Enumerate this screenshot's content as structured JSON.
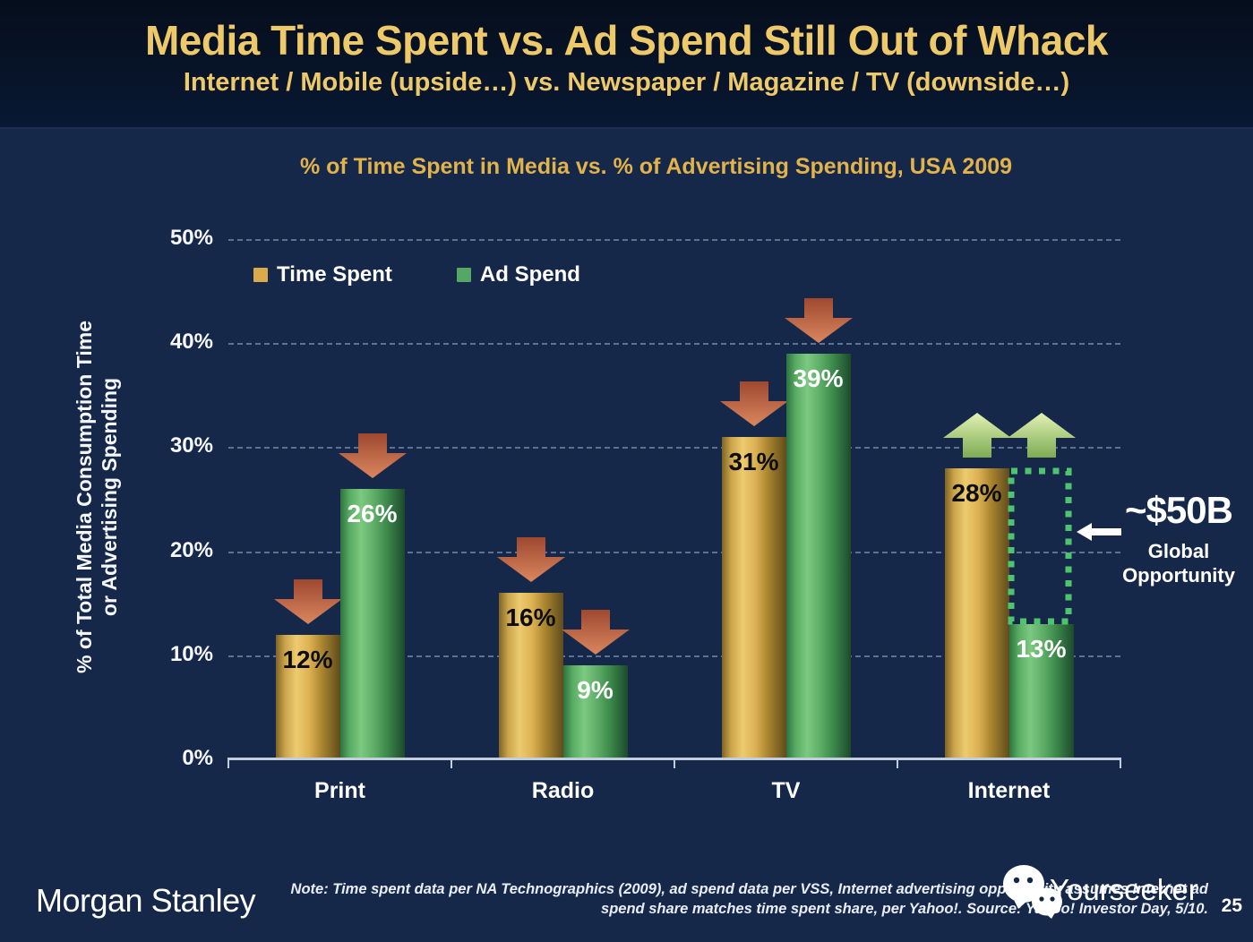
{
  "slide": {
    "title": "Media Time Spent vs. Ad Spend Still Out of Whack",
    "subtitle": "Internet / Mobile (upside…) vs. Newspaper / Magazine / TV (downside…)",
    "page_number": "25"
  },
  "chart_data": {
    "type": "bar",
    "title": "% of Time Spent in Media vs. % of Advertising Spending, USA 2009",
    "ylabel": [
      "% of Total Media Consumption Time",
      "or Advertising Spending"
    ],
    "categories": [
      "Print",
      "Radio",
      "TV",
      "Internet"
    ],
    "series": [
      {
        "name": "Time Spent",
        "color": "#d9ab4a",
        "values": [
          12,
          16,
          31,
          28
        ],
        "labels": [
          "12%",
          "16%",
          "31%",
          "28%"
        ]
      },
      {
        "name": "Ad Spend",
        "color": "#55a763",
        "values": [
          26,
          9,
          39,
          13
        ],
        "labels": [
          "26%",
          "9%",
          "39%",
          "13%"
        ]
      }
    ],
    "yticks": [
      {
        "value": 0,
        "label": "0%"
      },
      {
        "value": 10,
        "label": "10%"
      },
      {
        "value": 20,
        "label": "20%"
      },
      {
        "value": 30,
        "label": "30%"
      },
      {
        "value": 40,
        "label": "40%"
      },
      {
        "value": 50,
        "label": "50%"
      }
    ],
    "ylim": [
      0,
      50
    ],
    "grid": "dashed-horizontal",
    "legend_position": "top-left-inside",
    "trend_arrows": [
      "down",
      "down",
      "down",
      "up"
    ],
    "annotation": {
      "headline": "~$50B",
      "caption_line1": "Global",
      "caption_line2": "Opportunity",
      "target": "gap between Internet time spent (28%) and Internet ad spend (13%)"
    }
  },
  "footer": {
    "brand": "Morgan Stanley",
    "note_line1": "Note: Time spent data per NA Technographics (2009), ad spend data per VSS, Internet advertising opportunity assumes Internet ad",
    "note_line2": "spend share matches time spent share, per Yahoo!. Source: Yahoo! Investor Day, 5/10.",
    "watermark": "Yourseeker"
  }
}
